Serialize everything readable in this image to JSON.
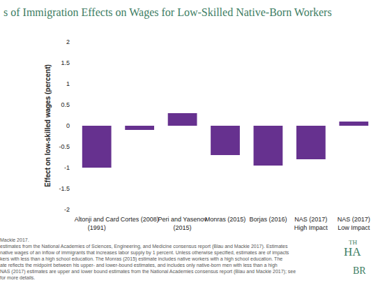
{
  "chart_data": {
    "type": "bar",
    "title": "s of Immigration Effects on Wages for Low-Skilled Native-Born Workers",
    "y_label": "Effect on low-skilled wages (percent)",
    "categories": [
      "Altonji and Card\n(1991)",
      "Cortes (2008)",
      "Peri and Yasenov\n(2015)",
      "Monras (2015)",
      "Borjas (2016)",
      "NAS (2017)\nHigh Impact",
      "NAS (2017)\nLow Impact"
    ],
    "values": [
      -1.0,
      -0.1,
      0.3,
      -0.7,
      -0.95,
      -0.8,
      0.1
    ],
    "color": "#66318f",
    "ylim": [
      -2,
      2
    ],
    "yticks": [
      -2,
      -1.5,
      -1,
      -0.5,
      0,
      0.5,
      1,
      1.5,
      2
    ],
    "grid": false,
    "notes": [
      "Mackie 2017.",
      "estimates from the National Academies of Sciences, Engineering, and Medicine consensus report (Blau and Mackie 2017). Estimates",
      "native wages of an inflow of immigrants that increases labor supply by 1 percent. Unless otherwise specified, estimates are of impacts",
      "kers with less than a high school education. The Monras (2015) estimate includes native workers with a high school education. The",
      "ate reflects the midpoint between his upper- and lower-bound estimates, and includes only native-born men with less than a high",
      "NAS (2017) estimates are upper and lower bound estimates from the National Academies consensus report (Blau and Mackie 2017); see",
      "for more details."
    ],
    "logo": [
      "TH",
      "HA",
      "BR"
    ]
  }
}
